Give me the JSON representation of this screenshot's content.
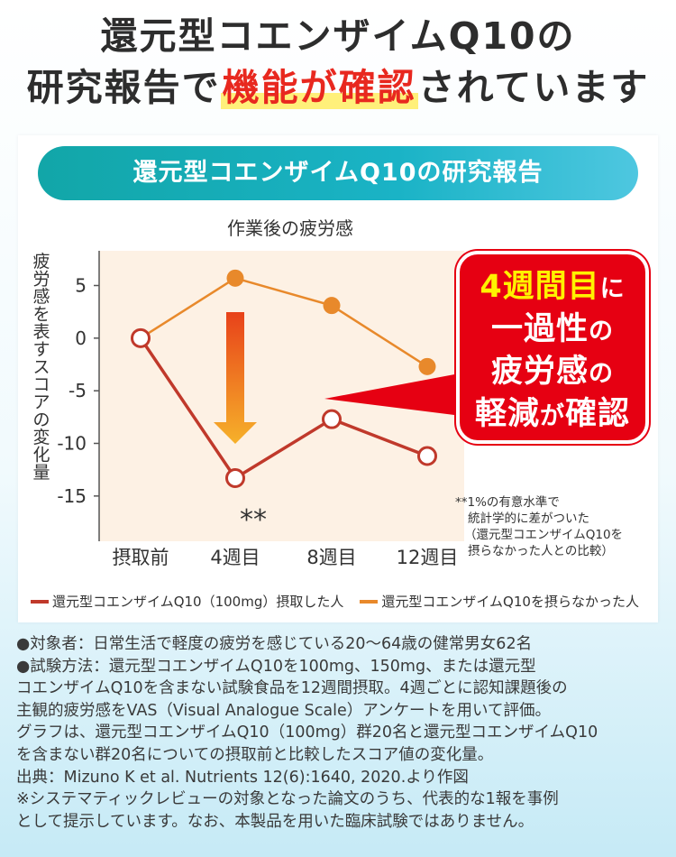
{
  "headline": {
    "line1": "還元型コエンザイムQ10の",
    "line2_prefix": "研究報告で",
    "line2_highlight": "機能が確認",
    "line2_suffix": "されています"
  },
  "banner": "還元型コエンザイムQ10の研究報告",
  "chart_data": {
    "type": "line",
    "title": "作業後の疲労感",
    "ylabel": "疲労感を表すスコアの変化量",
    "xlabel": "",
    "categories": [
      "摂取前",
      "4週目",
      "8週目",
      "12週目"
    ],
    "yticks": [
      5,
      0,
      -5,
      -10,
      -15
    ],
    "ytick_labels": [
      "5",
      "0",
      "-5",
      "-10",
      "-15"
    ],
    "ylim": [
      -19.3,
      8.3
    ],
    "grid": false,
    "series": [
      {
        "name": "還元型コエンザイムQ10（100mg）摂取した人",
        "color": "#c0392b",
        "values": [
          0,
          -13.3,
          -7.7,
          -11.2
        ],
        "marker": "open"
      },
      {
        "name": "還元型コエンザイムQ10を摂らなかった人",
        "color": "#e8892b",
        "values": [
          0,
          5.7,
          3.1,
          -2.7
        ],
        "marker": "filled"
      }
    ],
    "significance_marker": "**",
    "significance_index": 1
  },
  "callout": {
    "line1_big": "4週間目",
    "line1_small": "に",
    "line2": "一過性",
    "line2_small": "の",
    "line3": "疲労感",
    "line3_small": "の",
    "line4_a": "軽減",
    "line4_small": "が",
    "line4_b": "確認"
  },
  "footnote": {
    "l1": "**1%の有意水準で",
    "l2": "統計学的に差がついた",
    "l3": "（還元型コエンザイムQ10を",
    "l4": "摂らなかった人との比較）"
  },
  "legend": {
    "a": "還元型コエンザイムQ10（100mg）摂取した人",
    "b": "還元型コエンザイムQ10を摂らなかった人"
  },
  "notes": [
    "●対象者：日常生活で軽度の疲労を感じている20～64歳の健常男女62名",
    "●試験方法：還元型コエンザイムQ10を100mg、150mg、または還元型",
    "コエンザイムQ10を含まない試験食品を12週間摂取。4週ごとに認知課題後の",
    "主観的疲労感をVAS（Visual Analogue Scale）アンケートを用いて評価。",
    "グラフは、還元型コエンザイムQ10（100mg）群20名と還元型コエンザイムQ10",
    "を含まない群20名についての摂取前と比較したスコア値の変化量。",
    "出典：Mizuno K et al. Nutrients 12(6):1640, 2020.より作図",
    "※システマティックレビューの対象となった論文のうち、代表的な1報を事例",
    "として提示しています。なお、本製品を用いた臨床試験ではありません。"
  ]
}
